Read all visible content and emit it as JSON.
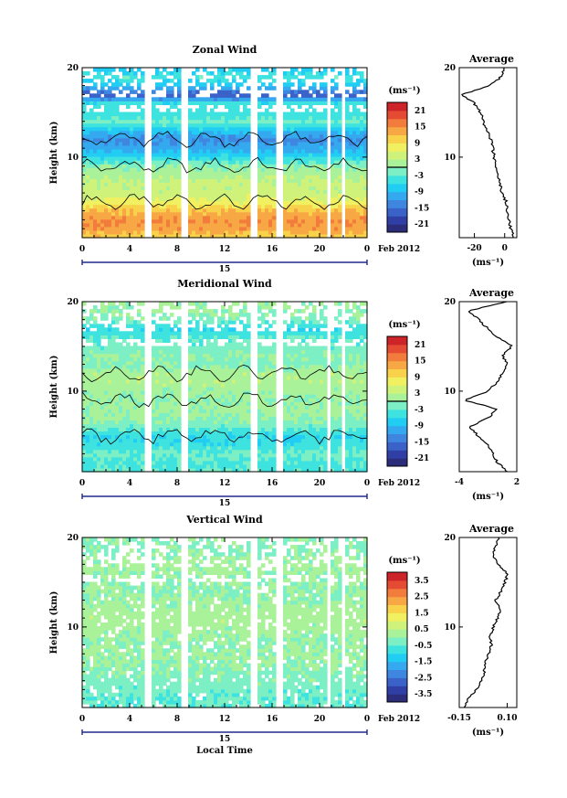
{
  "chart_data": [
    {
      "type": "heatmap",
      "title": "Zonal Wind",
      "xlabel": "",
      "ylabel": "Height (km)",
      "xlim": [
        0,
        24
      ],
      "ylim": [
        1,
        20
      ],
      "x_ticks": [
        "0",
        "4",
        "8",
        "12",
        "16",
        "20",
        "0"
      ],
      "y_ticks": [
        "10",
        "20"
      ],
      "date_day": "15",
      "date_label": "Feb 2012",
      "colorbar": {
        "unit": "(ms⁻¹)",
        "ticks": [
          "21",
          "15",
          "9",
          "3",
          "-3",
          "-9",
          "-15",
          "-21"
        ],
        "range": [
          -24,
          24
        ],
        "contour": 0
      },
      "gaps": [
        [
          5.3,
          5.9
        ],
        [
          8.3,
          8.8
        ],
        [
          14.2,
          14.7
        ],
        [
          16.3,
          16.9
        ],
        [
          18.7,
          18.9
        ],
        [
          20.6,
          20.9
        ],
        [
          21.9,
          22.3
        ]
      ],
      "heights": [
        1,
        2,
        3,
        4,
        5,
        6,
        7,
        8,
        9,
        10,
        11,
        12,
        13,
        14,
        15,
        16,
        17,
        18,
        19,
        20
      ],
      "values": [
        10,
        14,
        15,
        12,
        7,
        4,
        4,
        2,
        0,
        -6,
        -10,
        -13,
        -8,
        -2,
        -5,
        -4,
        -18,
        -8,
        -4,
        -8
      ],
      "profile": {
        "title": "Average",
        "xlabel": "(ms⁻¹)",
        "x_ticks": [
          "-20",
          "0"
        ],
        "xlim": [
          -30,
          8
        ],
        "heights": [
          1,
          2,
          3,
          4,
          5,
          6,
          7,
          8,
          9,
          10,
          11,
          12,
          13,
          14,
          15,
          16,
          17,
          18,
          19,
          20
        ],
        "values": [
          6,
          4,
          3,
          2,
          1,
          -2,
          -3,
          -4,
          -6,
          -7,
          -8,
          -9,
          -12,
          -14,
          -16,
          -20,
          -28,
          -10,
          -2,
          0
        ]
      }
    },
    {
      "type": "heatmap",
      "title": "Meridional Wind",
      "xlabel": "",
      "ylabel": "Height (km)",
      "xlim": [
        0,
        24
      ],
      "ylim": [
        1,
        20
      ],
      "x_ticks": [
        "0",
        "4",
        "8",
        "12",
        "16",
        "20",
        "0"
      ],
      "y_ticks": [
        "10",
        "20"
      ],
      "date_day": "15",
      "date_label": "Feb 2012",
      "colorbar": {
        "unit": "(ms⁻¹)",
        "ticks": [
          "21",
          "15",
          "9",
          "3",
          "-3",
          "-9",
          "-15",
          "-21"
        ],
        "range": [
          -24,
          24
        ],
        "contour": 0
      },
      "gaps": [
        [
          5.3,
          5.9
        ],
        [
          8.3,
          8.8
        ],
        [
          14.2,
          14.7
        ],
        [
          16.3,
          16.9
        ],
        [
          18.7,
          18.9
        ],
        [
          20.6,
          20.9
        ],
        [
          21.9,
          22.3
        ]
      ],
      "heights": [
        1,
        2,
        3,
        4,
        5,
        6,
        7,
        8,
        9,
        10,
        11,
        12,
        13,
        14,
        15,
        16,
        17,
        18,
        19,
        20
      ],
      "values": [
        -3,
        -4,
        -2,
        -5,
        -6,
        -2,
        0,
        1,
        0,
        1,
        2,
        2,
        -1,
        0,
        -2,
        -3,
        -6,
        -1,
        0,
        1
      ],
      "profile": {
        "title": "Average",
        "xlabel": "(ms⁻¹)",
        "x_ticks": [
          "-4",
          "2"
        ],
        "xlim": [
          -4,
          2
        ],
        "heights": [
          1,
          2,
          3,
          4,
          5,
          6,
          7,
          8,
          9,
          10,
          11,
          12,
          13,
          14,
          15,
          16,
          17,
          18,
          19,
          20
        ],
        "values": [
          1,
          0,
          -0.5,
          -1,
          -2,
          -3,
          -1,
          0,
          -3.5,
          -1,
          0,
          0.5,
          1,
          0.5,
          1.5,
          0,
          -1,
          -2,
          -3,
          1
        ]
      }
    },
    {
      "type": "heatmap",
      "title": "Vertical Wind",
      "xlabel": "Local Time",
      "ylabel": "Height (km)",
      "xlim": [
        0,
        24
      ],
      "ylim": [
        1,
        20
      ],
      "x_ticks": [
        "0",
        "4",
        "8",
        "12",
        "16",
        "20",
        "0"
      ],
      "y_ticks": [
        "10",
        "20"
      ],
      "date_day": "15",
      "date_label": "Feb 2012",
      "colorbar": {
        "unit": "(ms⁻¹)",
        "ticks": [
          "3.5",
          "2.5",
          "1.5",
          "0.5",
          "-0.5",
          "-1.5",
          "-2.5",
          "-3.5"
        ],
        "range": [
          -4,
          4
        ],
        "contour": null
      },
      "gaps": [
        [
          5.3,
          5.9
        ],
        [
          8.3,
          8.8
        ],
        [
          14.2,
          14.7
        ],
        [
          16.3,
          16.9
        ],
        [
          18.7,
          18.9
        ],
        [
          20.6,
          20.9
        ],
        [
          21.9,
          22.3
        ]
      ],
      "heights": [
        1,
        2,
        3,
        4,
        5,
        6,
        7,
        8,
        9,
        10,
        11,
        12,
        13,
        14,
        15,
        16,
        17,
        18,
        19,
        20
      ],
      "values": [
        -0.4,
        -0.5,
        -0.3,
        -0.2,
        -0.1,
        0,
        0.1,
        0,
        0.1,
        0.2,
        0.3,
        0.2,
        0.1,
        0,
        0,
        0.1,
        0.2,
        0,
        -0.1,
        0
      ],
      "profile": {
        "title": "Average",
        "xlabel": "(ms⁻¹)",
        "x_ticks": [
          "-0.15",
          "0.10"
        ],
        "xlim": [
          -0.15,
          0.15
        ],
        "heights": [
          1,
          2,
          3,
          4,
          5,
          6,
          7,
          8,
          9,
          10,
          11,
          12,
          13,
          14,
          15,
          16,
          17,
          18,
          19,
          20
        ],
        "values": [
          -0.12,
          -0.1,
          -0.06,
          -0.03,
          -0.02,
          -0.01,
          0,
          0.02,
          0.01,
          0.03,
          0.05,
          0.06,
          0.04,
          0.07,
          0.09,
          0.1,
          0.05,
          0.03,
          0.04,
          0.06
        ]
      }
    }
  ]
}
